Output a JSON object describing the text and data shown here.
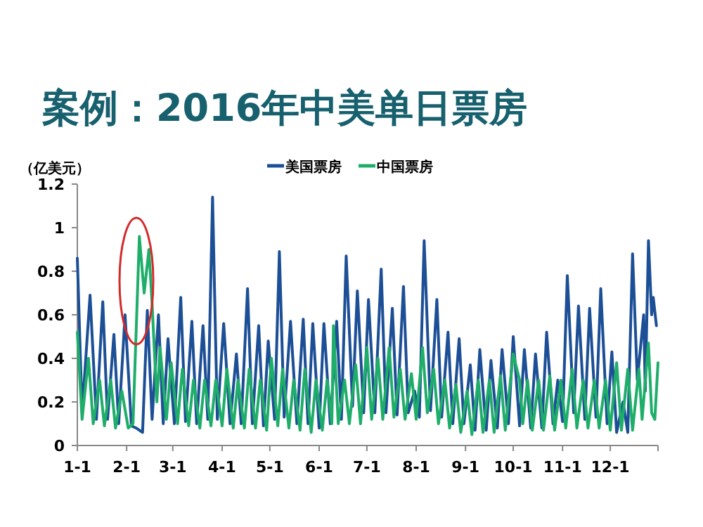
{
  "chart_data": {
    "type": "line",
    "title": "案例：2016年中美单日票房",
    "ylabel": "（亿美元）",
    "legend": "top",
    "grid": false,
    "marker": "none",
    "line_style": "solid",
    "xlim": [
      "--01-01",
      "--12-31"
    ],
    "xticks": [
      {
        "value": "--01-01",
        "label": "1-1"
      },
      {
        "value": "--02-01",
        "label": "2-1"
      },
      {
        "value": "--03-01",
        "label": "3-1"
      },
      {
        "value": "--04-01",
        "label": "4-1"
      },
      {
        "value": "--05-01",
        "label": "5-1"
      },
      {
        "value": "--06-01",
        "label": "6-1"
      },
      {
        "value": "--07-01",
        "label": "7-1"
      },
      {
        "value": "--08-01",
        "label": "8-1"
      },
      {
        "value": "--09-01",
        "label": "9-1"
      },
      {
        "value": "--10-01",
        "label": "10-1"
      },
      {
        "value": "--11-01",
        "label": "11-1"
      },
      {
        "value": "--12-01",
        "label": "12-1"
      }
    ],
    "ylim": [
      0,
      1.2
    ],
    "yticks": [
      0,
      0.2,
      0.4,
      0.6,
      0.8,
      1,
      1.2
    ],
    "series": [
      {
        "name": "美国票房",
        "color": "#1c4f96",
        "x": [
          "--01-01",
          "--01-04",
          "--01-09",
          "--01-13",
          "--01-17",
          "--01-20",
          "--01-24",
          "--01-27",
          "--01-31",
          "--02-04",
          "--02-07",
          "--02-11",
          "--02-14",
          "--02-17",
          "--02-21",
          "--02-24",
          "--02-27",
          "--03-02",
          "--03-06",
          "--03-09",
          "--03-13",
          "--03-16",
          "--03-20",
          "--03-23",
          "--03-26",
          "--03-29",
          "--04-02",
          "--04-06",
          "--04-10",
          "--04-13",
          "--04-17",
          "--04-20",
          "--04-24",
          "--04-27",
          "--04-30",
          "--05-04",
          "--05-07",
          "--05-10",
          "--05-14",
          "--05-18",
          "--05-22",
          "--05-25",
          "--05-28",
          "--06-01",
          "--06-04",
          "--06-08",
          "--06-12",
          "--06-15",
          "--06-18",
          "--06-22",
          "--06-25",
          "--06-29",
          "--07-02",
          "--07-06",
          "--07-10",
          "--07-13",
          "--07-17",
          "--07-20",
          "--07-24",
          "--07-27",
          "--07-31",
          "--08-03",
          "--08-06",
          "--08-10",
          "--08-14",
          "--08-17",
          "--08-21",
          "--08-24",
          "--08-28",
          "--08-31",
          "--09-04",
          "--09-07",
          "--09-10",
          "--09-14",
          "--09-17",
          "--09-21",
          "--09-24",
          "--09-28",
          "--10-01",
          "--10-05",
          "--10-08",
          "--10-12",
          "--10-15",
          "--10-19",
          "--10-22",
          "--10-26",
          "--10-29",
          "--11-01",
          "--11-04",
          "--11-08",
          "--11-11",
          "--11-15",
          "--11-18",
          "--11-22",
          "--11-25",
          "--11-29",
          "--12-02",
          "--12-05",
          "--12-09",
          "--12-12",
          "--12-15",
          "--12-18",
          "--12-22",
          "--12-23",
          "--12-25",
          "--12-27",
          "--12-28",
          "--12-30"
        ],
        "values": [
          0.86,
          0.15,
          0.69,
          0.12,
          0.66,
          0.12,
          0.51,
          0.1,
          0.6,
          0.09,
          0.08,
          0.06,
          0.62,
          0.12,
          0.6,
          0.1,
          0.49,
          0.1,
          0.68,
          0.11,
          0.57,
          0.1,
          0.55,
          0.12,
          1.14,
          0.12,
          0.56,
          0.1,
          0.42,
          0.1,
          0.72,
          0.1,
          0.55,
          0.09,
          0.48,
          0.12,
          0.89,
          0.13,
          0.57,
          0.1,
          0.58,
          0.1,
          0.56,
          0.08,
          0.56,
          0.1,
          0.57,
          0.12,
          0.87,
          0.18,
          0.71,
          0.15,
          0.67,
          0.15,
          0.81,
          0.15,
          0.63,
          0.14,
          0.73,
          0.15,
          0.25,
          0.13,
          0.94,
          0.16,
          0.67,
          0.13,
          0.52,
          0.1,
          0.49,
          0.1,
          0.37,
          0.07,
          0.44,
          0.07,
          0.39,
          0.08,
          0.44,
          0.1,
          0.5,
          0.09,
          0.44,
          0.08,
          0.42,
          0.08,
          0.52,
          0.1,
          0.3,
          0.11,
          0.78,
          0.15,
          0.64,
          0.12,
          0.63,
          0.13,
          0.72,
          0.1,
          0.43,
          0.06,
          0.2,
          0.06,
          0.88,
          0.3,
          0.6,
          0.25,
          0.94,
          0.6,
          0.68,
          0.55
        ]
      },
      {
        "name": "中国票房",
        "color": "#1fae6a",
        "x": [
          "--01-01",
          "--01-04",
          "--01-08",
          "--01-11",
          "--01-15",
          "--01-18",
          "--01-22",
          "--01-25",
          "--01-29",
          "--02-02",
          "--02-05",
          "--02-09",
          "--02-12",
          "--02-15",
          "--02-17",
          "--02-20",
          "--02-22",
          "--02-26",
          "--02-29",
          "--03-04",
          "--03-07",
          "--03-11",
          "--03-14",
          "--03-18",
          "--03-21",
          "--03-25",
          "--03-28",
          "--04-01",
          "--04-04",
          "--04-08",
          "--04-11",
          "--04-15",
          "--04-18",
          "--04-22",
          "--04-25",
          "--04-29",
          "--05-02",
          "--05-06",
          "--05-09",
          "--05-13",
          "--05-16",
          "--05-20",
          "--05-23",
          "--05-27",
          "--05-30",
          "--06-03",
          "--06-06",
          "--06-09",
          "--06-10",
          "--06-13",
          "--06-17",
          "--06-20",
          "--06-24",
          "--06-27",
          "--07-01",
          "--07-04",
          "--07-08",
          "--07-11",
          "--07-15",
          "--07-18",
          "--07-22",
          "--07-25",
          "--07-29",
          "--08-01",
          "--08-05",
          "--08-08",
          "--08-12",
          "--08-15",
          "--08-19",
          "--08-22",
          "--08-26",
          "--08-29",
          "--09-02",
          "--09-05",
          "--09-09",
          "--09-12",
          "--09-16",
          "--09-19",
          "--09-23",
          "--09-26",
          "--10-01",
          "--10-05",
          "--10-07",
          "--10-10",
          "--10-13",
          "--10-17",
          "--10-20",
          "--10-24",
          "--10-27",
          "--10-31",
          "--11-03",
          "--11-07",
          "--11-10",
          "--11-14",
          "--11-17",
          "--11-21",
          "--11-24",
          "--11-28",
          "--12-01",
          "--12-05",
          "--12-08",
          "--12-12",
          "--12-15",
          "--12-19",
          "--12-21",
          "--12-25",
          "--12-27",
          "--12-29",
          "--12-31"
        ],
        "values": [
          0.52,
          0.12,
          0.4,
          0.1,
          0.3,
          0.09,
          0.3,
          0.08,
          0.25,
          0.08,
          0.1,
          0.96,
          0.7,
          0.9,
          0.65,
          0.2,
          0.45,
          0.12,
          0.38,
          0.1,
          0.35,
          0.09,
          0.3,
          0.08,
          0.3,
          0.09,
          0.3,
          0.09,
          0.35,
          0.08,
          0.3,
          0.08,
          0.35,
          0.08,
          0.3,
          0.07,
          0.4,
          0.09,
          0.35,
          0.08,
          0.3,
          0.07,
          0.35,
          0.06,
          0.3,
          0.07,
          0.3,
          0.1,
          0.55,
          0.1,
          0.3,
          0.1,
          0.37,
          0.1,
          0.45,
          0.12,
          0.4,
          0.12,
          0.45,
          0.13,
          0.35,
          0.12,
          0.33,
          0.12,
          0.45,
          0.15,
          0.35,
          0.1,
          0.3,
          0.08,
          0.28,
          0.06,
          0.25,
          0.05,
          0.3,
          0.06,
          0.3,
          0.06,
          0.32,
          0.07,
          0.42,
          0.3,
          0.1,
          0.3,
          0.07,
          0.3,
          0.07,
          0.32,
          0.07,
          0.3,
          0.08,
          0.35,
          0.08,
          0.3,
          0.08,
          0.3,
          0.08,
          0.3,
          0.07,
          0.38,
          0.07,
          0.35,
          0.07,
          0.35,
          0.12,
          0.47,
          0.15,
          0.12,
          0.38
        ]
      }
    ]
  }
}
